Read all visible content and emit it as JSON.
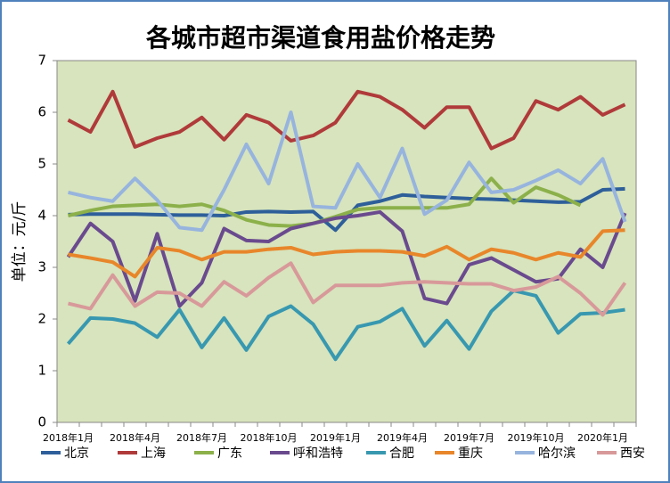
{
  "chart_data": {
    "type": "line",
    "title": "各城市超市渠道食用盐价格走势",
    "y_label": "单位：元/斤",
    "categories": [
      "2018年1月",
      null,
      null,
      "2018年4月",
      null,
      null,
      "2018年7月",
      null,
      null,
      "2018年10月",
      null,
      null,
      "2019年1月",
      null,
      null,
      "2019年4月",
      null,
      null,
      "2019年7月",
      null,
      null,
      "2019年10月",
      null,
      null,
      "2020年1月",
      null
    ],
    "ylim": [
      0,
      7
    ],
    "yticks": [
      0,
      1,
      2,
      3,
      4,
      5,
      6,
      7
    ],
    "grid": false,
    "legend": "bottom",
    "series": [
      {
        "name": "北京",
        "color": "#2e5f9a",
        "values": [
          4.02,
          4.03,
          4.03,
          4.03,
          4.02,
          4.01,
          4.01,
          4.0,
          4.07,
          4.08,
          4.07,
          4.08,
          3.72,
          4.2,
          4.28,
          4.4,
          4.37,
          4.35,
          4.33,
          4.32,
          4.3,
          4.28,
          4.26,
          4.27,
          4.5,
          4.52
        ]
      },
      {
        "name": "上海",
        "color": "#b03a3a",
        "values": [
          5.85,
          5.62,
          6.4,
          5.33,
          5.5,
          5.62,
          5.9,
          5.47,
          5.95,
          5.8,
          5.45,
          5.55,
          5.8,
          6.4,
          6.3,
          6.05,
          5.7,
          6.1,
          6.1,
          5.3,
          5.5,
          6.22,
          6.05,
          6.3,
          5.95,
          6.15
        ]
      },
      {
        "name": "广东",
        "color": "#8cb04a",
        "values": [
          4.0,
          4.1,
          4.18,
          4.2,
          4.22,
          4.18,
          4.22,
          4.1,
          3.92,
          3.82,
          3.8,
          3.85,
          3.98,
          4.12,
          4.15,
          4.15,
          4.15,
          4.15,
          4.22,
          4.72,
          4.25,
          4.55,
          4.4,
          4.2,
          null,
          null
        ]
      },
      {
        "name": "呼和浩特",
        "color": "#6a4a8e",
        "values": [
          3.2,
          3.85,
          3.5,
          2.35,
          3.65,
          2.25,
          2.7,
          3.75,
          3.52,
          3.5,
          3.75,
          3.85,
          3.95,
          4.0,
          4.07,
          3.7,
          2.4,
          2.3,
          3.05,
          3.18,
          2.95,
          2.72,
          2.78,
          3.35,
          3.0,
          4.05
        ]
      },
      {
        "name": "合肥",
        "color": "#3898b0",
        "values": [
          1.52,
          2.02,
          2.0,
          1.92,
          1.65,
          2.18,
          1.45,
          2.02,
          1.4,
          2.05,
          2.25,
          1.9,
          1.22,
          1.85,
          1.95,
          2.2,
          1.48,
          1.97,
          1.42,
          2.15,
          2.55,
          2.45,
          1.73,
          2.1,
          2.12,
          2.18
        ]
      },
      {
        "name": "重庆",
        "color": "#e8862a",
        "values": [
          3.25,
          3.18,
          3.1,
          2.82,
          3.38,
          3.32,
          3.15,
          3.3,
          3.3,
          3.35,
          3.38,
          3.25,
          3.3,
          3.32,
          3.32,
          3.3,
          3.22,
          3.4,
          3.15,
          3.35,
          3.28,
          3.15,
          3.28,
          3.2,
          3.7,
          3.72
        ]
      },
      {
        "name": "哈尔滨",
        "color": "#97b4de",
        "values": [
          4.45,
          4.35,
          4.28,
          4.72,
          4.3,
          3.77,
          3.72,
          4.5,
          5.38,
          4.62,
          6.0,
          4.18,
          4.15,
          5.0,
          4.35,
          5.3,
          4.03,
          4.3,
          5.03,
          4.45,
          4.5,
          4.68,
          4.88,
          4.62,
          5.1,
          3.88
        ]
      },
      {
        "name": "西安",
        "color": "#d8999a",
        "values": [
          2.3,
          2.2,
          2.85,
          2.25,
          2.52,
          2.5,
          2.25,
          2.72,
          2.45,
          2.8,
          3.08,
          2.32,
          2.65,
          2.65,
          2.65,
          2.7,
          2.72,
          2.7,
          2.68,
          2.68,
          2.55,
          2.62,
          2.82,
          2.5,
          2.08,
          2.7
        ]
      }
    ]
  }
}
